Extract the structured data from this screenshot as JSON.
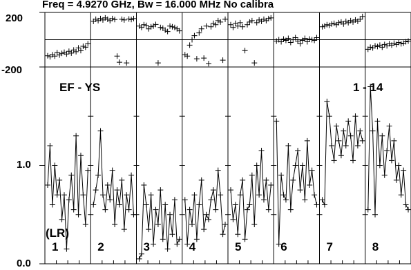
{
  "chart_data": {
    "type": "line",
    "title": "Freq = 4.9270 GHz, Bw = 16.000 MHz   No calibra",
    "baseline_label": "EF - YS",
    "channel_range": "1 - 14",
    "polarization": "(LR)",
    "phase_panel": {
      "ylim": [
        -200,
        200
      ],
      "tick_labels": [
        "200",
        "-200"
      ]
    },
    "amplitude_panel": {
      "ylim": [
        0.0,
        2.0
      ],
      "tick_labels": [
        "1.0",
        "0.0"
      ]
    },
    "series": [
      {
        "label": "1",
        "phase": [
          -118,
          -125,
          -110,
          -120,
          -95,
          -112,
          -100,
          -92,
          -105,
          -85,
          -98,
          -75,
          -88,
          -60,
          -80,
          -48,
          -55,
          -30
        ],
        "amp": [
          0.8,
          1.2,
          0.6,
          1.0,
          0.7,
          0.85,
          0.45,
          0.7,
          0.15,
          0.65,
          0.9,
          0.55,
          1.3,
          0.5,
          1.1,
          0.7,
          0.4,
          0.95
        ]
      },
      {
        "label": "2",
        "phase": [
          135,
          150,
          140,
          155,
          145,
          160,
          150,
          140,
          155,
          148,
          -120,
          -165,
          150,
          145,
          -170,
          152,
          148,
          155
        ],
        "amp": [
          0.6,
          0.75,
          0.9,
          1.35,
          0.7,
          0.55,
          0.8,
          0.65,
          0.95,
          0.4,
          0.75,
          0.6,
          0.85,
          0.35,
          0.7,
          0.55,
          0.9,
          0.5
        ]
      },
      {
        "label": "3",
        "phase": [
          100,
          90,
          110,
          105,
          80,
          95,
          100,
          112,
          -170,
          90,
          85,
          70,
          60,
          100,
          95,
          90,
          80,
          65
        ],
        "amp": [
          0.05,
          0.1,
          0.8,
          0.6,
          0.35,
          0.7,
          0.2,
          0.55,
          0.4,
          0.75,
          0.25,
          0.6,
          0.15,
          0.5,
          0.3,
          0.65,
          0.2,
          0.25
        ]
      },
      {
        "label": "4",
        "phase": [
          -110,
          -120,
          -40,
          0,
          30,
          -140,
          50,
          80,
          -135,
          100,
          -175,
          95,
          120,
          110,
          140,
          130,
          -150,
          150
        ],
        "amp": [
          0.65,
          0.2,
          0.55,
          0.4,
          0.7,
          0.25,
          0.6,
          0.85,
          0.35,
          0.5,
          0.45,
          0.65,
          0.75,
          0.55,
          0.95,
          0.7,
          0.3,
          0.4
        ]
      },
      {
        "label": "5",
        "phase": [
          110,
          90,
          120,
          100,
          125,
          95,
          -80,
          110,
          130,
          140,
          -170,
          125,
          145,
          135,
          150,
          140,
          155,
          160
        ],
        "amp": [
          0.75,
          0.45,
          0.6,
          0.3,
          0.7,
          0.85,
          0.25,
          0.55,
          0.6,
          0.9,
          0.4,
          1.0,
          0.7,
          1.15,
          0.65,
          0.85,
          0.55,
          0.8
        ]
      },
      {
        "label": "6",
        "phase": [
          -10,
          0,
          -15,
          5,
          -5,
          10,
          -20,
          0,
          15,
          -10,
          -30,
          -5,
          10,
          -15,
          5,
          0,
          -5,
          15
        ],
        "amp": [
          1.45,
          0.2,
          0.9,
          0.7,
          0.65,
          1.2,
          0.55,
          0.85,
          1.0,
          1.15,
          0.75,
          1.0,
          0.65,
          1.25,
          0.8,
          0.95,
          0.7,
          0.6
        ]
      },
      {
        "label": "7",
        "phase": [
          95,
          100,
          110,
          105,
          115,
          120,
          110,
          125,
          130,
          115,
          135,
          125,
          140,
          130,
          145,
          135,
          150,
          170
        ],
        "amp": [
          0.65,
          0.6,
          1.65,
          1.5,
          1.2,
          1.05,
          1.4,
          1.25,
          1.1,
          1.35,
          1.2,
          1.45,
          1.3,
          1.05,
          1.5,
          1.2,
          1.35,
          1.25
        ]
      },
      {
        "label": "8",
        "phase": [
          -70,
          -55,
          -60,
          -45,
          -50,
          -40,
          -55,
          -35,
          -45,
          -30,
          -40,
          -25,
          -35,
          -20,
          -30,
          -25,
          -15,
          -10
        ],
        "amp": [
          0.55,
          1.8,
          1.35,
          0.5,
          1.45,
          1.0,
          1.3,
          0.9,
          1.15,
          1.4,
          1.05,
          1.25,
          0.85,
          1.0,
          0.7,
          0.95,
          0.6,
          0.55
        ]
      }
    ]
  }
}
